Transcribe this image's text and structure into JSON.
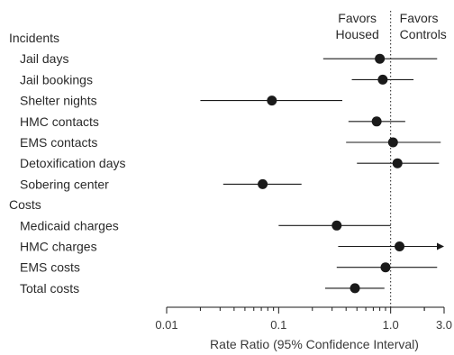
{
  "chart_data": {
    "type": "forest",
    "scale": "log",
    "xlim": [
      0.01,
      3.0
    ],
    "xlabel": "Rate Ratio (95% Confidence Interval)",
    "ticks": [
      {
        "value": 0.01,
        "label": "0.01"
      },
      {
        "value": 0.1,
        "label": "0.1"
      },
      {
        "value": 1.0,
        "label": "1.0"
      },
      {
        "value": 3.0,
        "label": "3.0"
      }
    ],
    "reference_value": 1.0,
    "favors_left": [
      "Favors",
      "Housed"
    ],
    "favors_right": [
      "Favors",
      "Controls"
    ],
    "sections": [
      {
        "title": "Incidents",
        "rows": [
          {
            "label": "Jail days",
            "estimate": 0.8,
            "lower": 0.25,
            "upper": 2.6
          },
          {
            "label": "Jail bookings",
            "estimate": 0.85,
            "lower": 0.45,
            "upper": 1.6
          },
          {
            "label": "Shelter nights",
            "estimate": 0.087,
            "lower": 0.02,
            "upper": 0.37
          },
          {
            "label": "HMC contacts",
            "estimate": 0.75,
            "lower": 0.42,
            "upper": 1.35
          },
          {
            "label": "EMS contacts",
            "estimate": 1.05,
            "lower": 0.4,
            "upper": 2.8
          },
          {
            "label": "Detoxification days",
            "estimate": 1.15,
            "lower": 0.5,
            "upper": 2.7
          },
          {
            "label": "Sobering center",
            "estimate": 0.072,
            "lower": 0.032,
            "upper": 0.16
          }
        ]
      },
      {
        "title": "Costs",
        "rows": [
          {
            "label": "Medicaid charges",
            "estimate": 0.33,
            "lower": 0.1,
            "upper": 1.0
          },
          {
            "label": "HMC charges",
            "estimate": 1.2,
            "lower": 0.34,
            "upper": 3.0,
            "upper_arrow": true
          },
          {
            "label": "EMS costs",
            "estimate": 0.9,
            "lower": 0.33,
            "upper": 2.6
          },
          {
            "label": "Total costs",
            "estimate": 0.48,
            "lower": 0.26,
            "upper": 0.88
          }
        ]
      }
    ]
  }
}
